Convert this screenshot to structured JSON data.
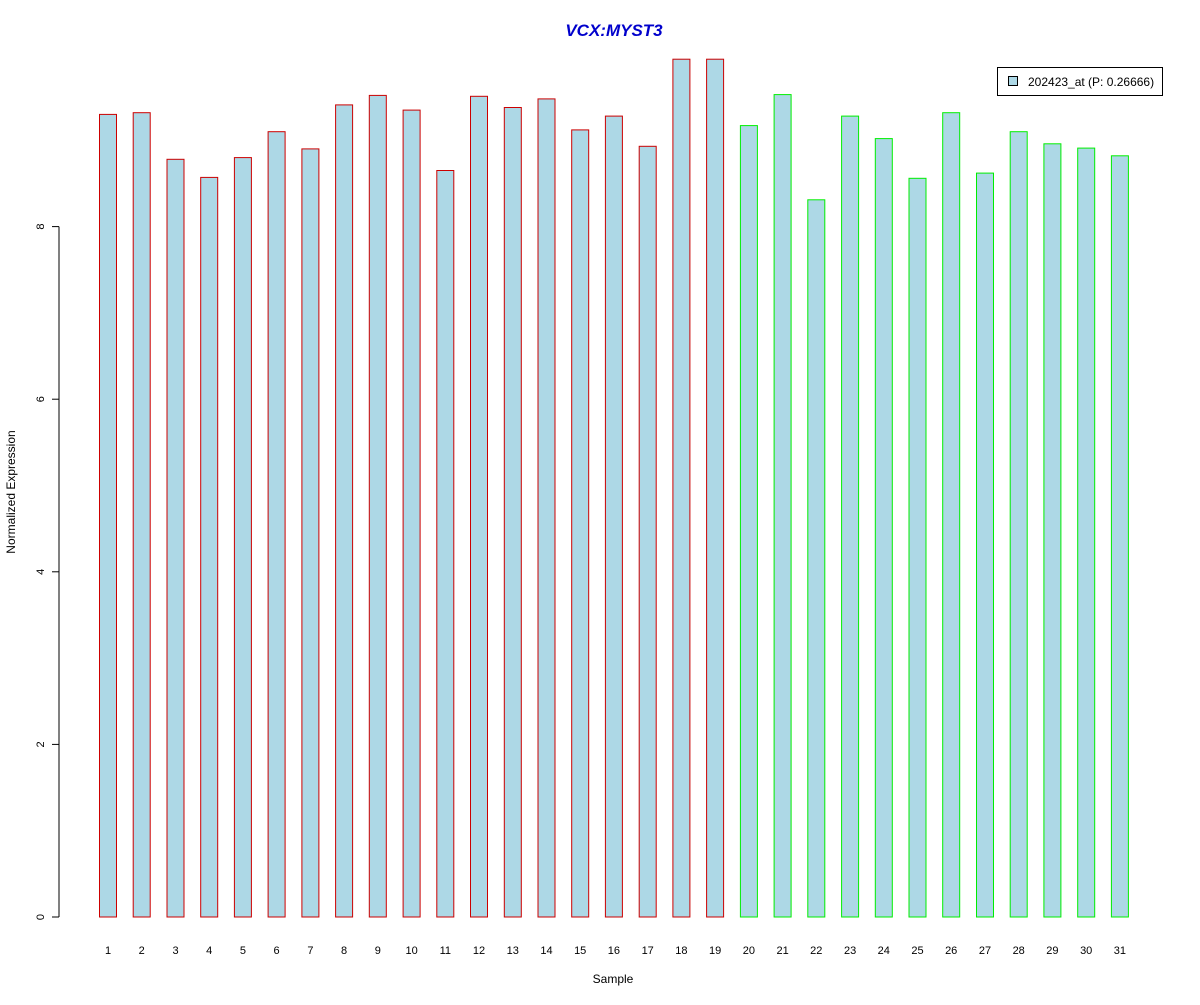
{
  "chart_data": {
    "type": "bar",
    "title": "VCX:MYST3",
    "xlabel": "Sample",
    "ylabel": "Normalized Expression",
    "categories": [
      "1",
      "2",
      "3",
      "4",
      "5",
      "6",
      "7",
      "8",
      "9",
      "10",
      "11",
      "12",
      "13",
      "14",
      "15",
      "16",
      "17",
      "18",
      "19",
      "20",
      "21",
      "22",
      "23",
      "24",
      "25",
      "26",
      "27",
      "28",
      "29",
      "30",
      "31"
    ],
    "series": [
      {
        "name": "202423_at (P: 0.26666)",
        "values": [
          9.3,
          9.32,
          8.78,
          8.57,
          8.8,
          9.1,
          8.9,
          9.41,
          9.52,
          9.35,
          8.65,
          9.51,
          9.38,
          9.48,
          9.12,
          9.28,
          8.93,
          9.94,
          9.94,
          9.17,
          9.53,
          8.31,
          9.28,
          9.02,
          8.56,
          9.32,
          8.62,
          9.1,
          8.96,
          8.91,
          8.82
        ]
      }
    ],
    "groups": [
      {
        "samples": "1-19",
        "border_color": "#cc0000"
      },
      {
        "samples": "20-31",
        "border_color": "#00ee00"
      }
    ],
    "yticks": [
      0,
      2,
      4,
      6,
      8
    ],
    "ylim": [
      0,
      10.2
    ],
    "grid": false,
    "legend_position": "top-right"
  },
  "colors": {
    "title": "#0000cc",
    "bar_fill": "#add8e6",
    "group1_border": "#cc0000",
    "group2_border": "#00ee00",
    "axis": "#000000"
  }
}
